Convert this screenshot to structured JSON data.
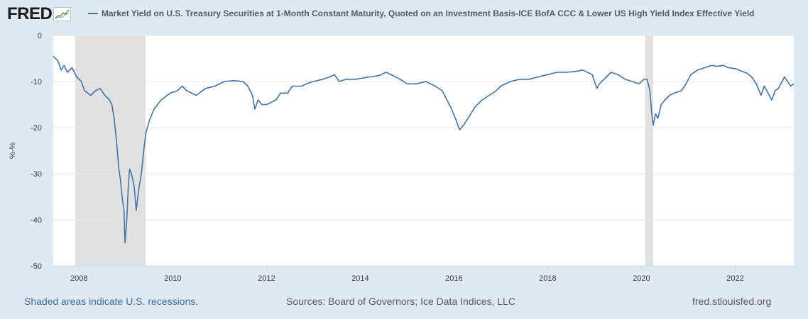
{
  "header": {
    "logo_text": "FRED",
    "legend_label": "Market Yield on U.S. Treasury Securities at 1-Month Constant Maturity, Quoted on an Investment Basis-ICE BofA CCC & Lower US High Yield Index Effective Yield"
  },
  "footer": {
    "recession_note": "Shaded areas indicate U.S. recessions.",
    "sources": "Sources: Board of Governors; Ice Data Indices, LLC",
    "site": "fred.stlouisfed.org"
  },
  "colors": {
    "series": "#4572a7",
    "recession": "#e1e1e1",
    "plot_bg": "#ffffff",
    "page_bg": "#e1e9f0"
  },
  "chart_data": {
    "type": "line",
    "title": "",
    "xlabel": "",
    "ylabel": "%-%",
    "xlim": [
      2007.45,
      2023.25
    ],
    "ylim": [
      -50,
      0
    ],
    "yticks": [
      0,
      -10,
      -20,
      -30,
      -40,
      -50
    ],
    "xticks": [
      2008,
      2010,
      2012,
      2014,
      2016,
      2018,
      2020,
      2022
    ],
    "grid": "horizontal",
    "recessions": [
      [
        2007.92,
        2009.42
      ],
      [
        2020.08,
        2020.25
      ]
    ],
    "series": [
      {
        "name": "Market Yield on U.S. Treasury Securities at 1-Month Constant Maturity, Quoted on an Investment Basis-ICE BofA CCC & Lower US High Yield Index Effective Yield",
        "points": [
          [
            2007.45,
            -4.5
          ],
          [
            2007.55,
            -5.5
          ],
          [
            2007.62,
            -7.5
          ],
          [
            2007.68,
            -6.5
          ],
          [
            2007.75,
            -8
          ],
          [
            2007.85,
            -7
          ],
          [
            2007.95,
            -9
          ],
          [
            2008.05,
            -10
          ],
          [
            2008.12,
            -12
          ],
          [
            2008.25,
            -13
          ],
          [
            2008.35,
            -12
          ],
          [
            2008.45,
            -11.5
          ],
          [
            2008.55,
            -13
          ],
          [
            2008.65,
            -14
          ],
          [
            2008.7,
            -15
          ],
          [
            2008.75,
            -18
          ],
          [
            2008.8,
            -23
          ],
          [
            2008.85,
            -29
          ],
          [
            2008.88,
            -31
          ],
          [
            2008.93,
            -36
          ],
          [
            2008.96,
            -38
          ],
          [
            2008.98,
            -45
          ],
          [
            2009.02,
            -40
          ],
          [
            2009.05,
            -33
          ],
          [
            2009.08,
            -29
          ],
          [
            2009.12,
            -30
          ],
          [
            2009.18,
            -33
          ],
          [
            2009.22,
            -38
          ],
          [
            2009.28,
            -33
          ],
          [
            2009.33,
            -30
          ],
          [
            2009.38,
            -25
          ],
          [
            2009.43,
            -21
          ],
          [
            2009.5,
            -18.5
          ],
          [
            2009.6,
            -16
          ],
          [
            2009.75,
            -14
          ],
          [
            2009.95,
            -12.5
          ],
          [
            2010.1,
            -12
          ],
          [
            2010.2,
            -11
          ],
          [
            2010.3,
            -12
          ],
          [
            2010.5,
            -13
          ],
          [
            2010.7,
            -11.5
          ],
          [
            2010.9,
            -11
          ],
          [
            2011.1,
            -10
          ],
          [
            2011.3,
            -9.8
          ],
          [
            2011.5,
            -10
          ],
          [
            2011.6,
            -11
          ],
          [
            2011.7,
            -13
          ],
          [
            2011.75,
            -16
          ],
          [
            2011.82,
            -14
          ],
          [
            2011.9,
            -15
          ],
          [
            2012.0,
            -15
          ],
          [
            2012.2,
            -14
          ],
          [
            2012.3,
            -12.5
          ],
          [
            2012.45,
            -12.5
          ],
          [
            2012.55,
            -11
          ],
          [
            2012.75,
            -11
          ],
          [
            2012.85,
            -10.5
          ],
          [
            2013.0,
            -10
          ],
          [
            2013.2,
            -9.5
          ],
          [
            2013.35,
            -9
          ],
          [
            2013.45,
            -8.5
          ],
          [
            2013.55,
            -10
          ],
          [
            2013.7,
            -9.5
          ],
          [
            2013.9,
            -9.5
          ],
          [
            2014.2,
            -9
          ],
          [
            2014.4,
            -8.7
          ],
          [
            2014.55,
            -8
          ],
          [
            2014.7,
            -8.7
          ],
          [
            2014.85,
            -9.5
          ],
          [
            2015.0,
            -10.5
          ],
          [
            2015.2,
            -10.5
          ],
          [
            2015.4,
            -10
          ],
          [
            2015.6,
            -11
          ],
          [
            2015.75,
            -12
          ],
          [
            2015.85,
            -14
          ],
          [
            2015.95,
            -16
          ],
          [
            2016.05,
            -18.5
          ],
          [
            2016.12,
            -20.5
          ],
          [
            2016.2,
            -19.5
          ],
          [
            2016.3,
            -18
          ],
          [
            2016.45,
            -15.5
          ],
          [
            2016.6,
            -14
          ],
          [
            2016.75,
            -13
          ],
          [
            2016.9,
            -12
          ],
          [
            2017.0,
            -11
          ],
          [
            2017.2,
            -10
          ],
          [
            2017.4,
            -9.5
          ],
          [
            2017.6,
            -9.5
          ],
          [
            2017.8,
            -9
          ],
          [
            2018.0,
            -8.5
          ],
          [
            2018.2,
            -8
          ],
          [
            2018.4,
            -8
          ],
          [
            2018.6,
            -7.8
          ],
          [
            2018.75,
            -7.5
          ],
          [
            2018.95,
            -8.5
          ],
          [
            2019.0,
            -10
          ],
          [
            2019.05,
            -11.5
          ],
          [
            2019.1,
            -10.5
          ],
          [
            2019.2,
            -9.5
          ],
          [
            2019.35,
            -8
          ],
          [
            2019.5,
            -8.5
          ],
          [
            2019.65,
            -9.5
          ],
          [
            2019.8,
            -10
          ],
          [
            2019.95,
            -10.5
          ],
          [
            2020.05,
            -9.5
          ],
          [
            2020.12,
            -9.5
          ],
          [
            2020.18,
            -12
          ],
          [
            2020.22,
            -17
          ],
          [
            2020.25,
            -19.5
          ],
          [
            2020.3,
            -17
          ],
          [
            2020.35,
            -18
          ],
          [
            2020.42,
            -15
          ],
          [
            2020.5,
            -14
          ],
          [
            2020.6,
            -13
          ],
          [
            2020.7,
            -12.5
          ],
          [
            2020.85,
            -12
          ],
          [
            2020.95,
            -10.5
          ],
          [
            2021.05,
            -8.5
          ],
          [
            2021.2,
            -7.5
          ],
          [
            2021.35,
            -7
          ],
          [
            2021.5,
            -6.5
          ],
          [
            2021.6,
            -6.7
          ],
          [
            2021.75,
            -6.5
          ],
          [
            2021.85,
            -7
          ],
          [
            2022.0,
            -7.2
          ],
          [
            2022.15,
            -7.8
          ],
          [
            2022.25,
            -8.2
          ],
          [
            2022.35,
            -9
          ],
          [
            2022.45,
            -10.5
          ],
          [
            2022.55,
            -13
          ],
          [
            2022.62,
            -11
          ],
          [
            2022.7,
            -12.5
          ],
          [
            2022.78,
            -14
          ],
          [
            2022.85,
            -12
          ],
          [
            2022.92,
            -11.5
          ],
          [
            2023.0,
            -10
          ],
          [
            2023.05,
            -9
          ],
          [
            2023.12,
            -10
          ],
          [
            2023.18,
            -11
          ],
          [
            2023.25,
            -10.5
          ]
        ]
      }
    ]
  }
}
